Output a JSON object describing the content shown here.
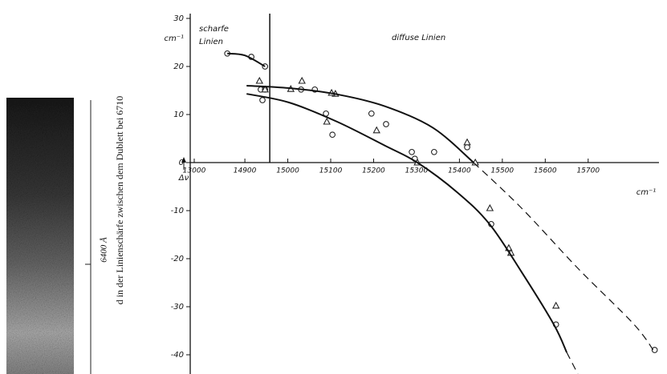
{
  "figure": {
    "side_caption": "d in der Linienschärfe zwischen dem Dublett bei 6710",
    "strip_label": "6400 Å"
  },
  "chart_data": {
    "type": "line",
    "region_labels": [
      [
        "scharfe",
        "Linien"
      ],
      [
        "diffuse Linien"
      ]
    ],
    "y_label": "Δν",
    "y_unit": "cm⁻¹",
    "x_unit": "cm⁻¹",
    "xlim": [
      14782,
      15865
    ],
    "ylim": [
      -44,
      31
    ],
    "x_break": true,
    "xticks": [
      13000,
      14900,
      15000,
      15100,
      15200,
      15300,
      15400,
      15500,
      15600,
      15700
    ],
    "yticks": [
      30,
      20,
      10,
      0,
      -10,
      -20,
      -30,
      -40
    ],
    "divider_x": 14958,
    "series": [
      {
        "marker": "circle",
        "color": "#222",
        "x": [
          14859,
          14915,
          14947,
          14937,
          14947,
          14941,
          15031,
          15063,
          15104,
          15089,
          15195,
          15229,
          15289,
          15296,
          15341,
          15418,
          15474,
          15625,
          15855
        ],
        "values": [
          22.7,
          22.0,
          20.0,
          15.2,
          15.2,
          13.0,
          15.2,
          15.2,
          5.8,
          10.2,
          10.2,
          8.0,
          2.2,
          0.8,
          2.2,
          3.2,
          -12.8,
          -33.7,
          -39
        ]
      },
      {
        "marker": "triangle",
        "color": "#222",
        "x": [
          14934,
          14947,
          15033,
          15007,
          15111,
          15102,
          15091,
          15207,
          15302,
          15437,
          15418,
          15471,
          15515,
          15520,
          15625
        ],
        "values": [
          17.0,
          15.2,
          17.0,
          15.3,
          14.3,
          14.5,
          8.5,
          6.7,
          0,
          0,
          4.2,
          -9.5,
          -17.8,
          -18.8,
          -29.8
        ]
      },
      {
        "style": "solid",
        "color": "#111",
        "x": [
          14859,
          14900,
          14947
        ],
        "values": [
          22.7,
          22.3,
          20.0
        ]
      },
      {
        "style": "solid",
        "color": "#111",
        "x": [
          14904,
          15003,
          15115,
          15227,
          15339,
          15433
        ],
        "values": [
          16.0,
          15.5,
          14.2,
          11.7,
          7.2,
          0
        ]
      },
      {
        "style": "dashed",
        "color": "#111",
        "x": [
          15433,
          15545,
          15676,
          15807,
          15855
        ],
        "values": [
          0,
          -9.5,
          -22,
          -33.7,
          -39.5
        ]
      },
      {
        "style": "solid",
        "color": "#111",
        "x": [
          14904,
          15003,
          15115,
          15227,
          15302,
          15395,
          15470,
          15545,
          15620,
          15650
        ],
        "values": [
          14.3,
          12.5,
          8.5,
          3.5,
          0,
          -6.2,
          -12.8,
          -22.8,
          -33.7,
          -39.5
        ]
      },
      {
        "style": "dashed",
        "color": "#111",
        "x": [
          15650,
          15676
        ],
        "values": [
          -39.5,
          -44
        ]
      }
    ]
  }
}
